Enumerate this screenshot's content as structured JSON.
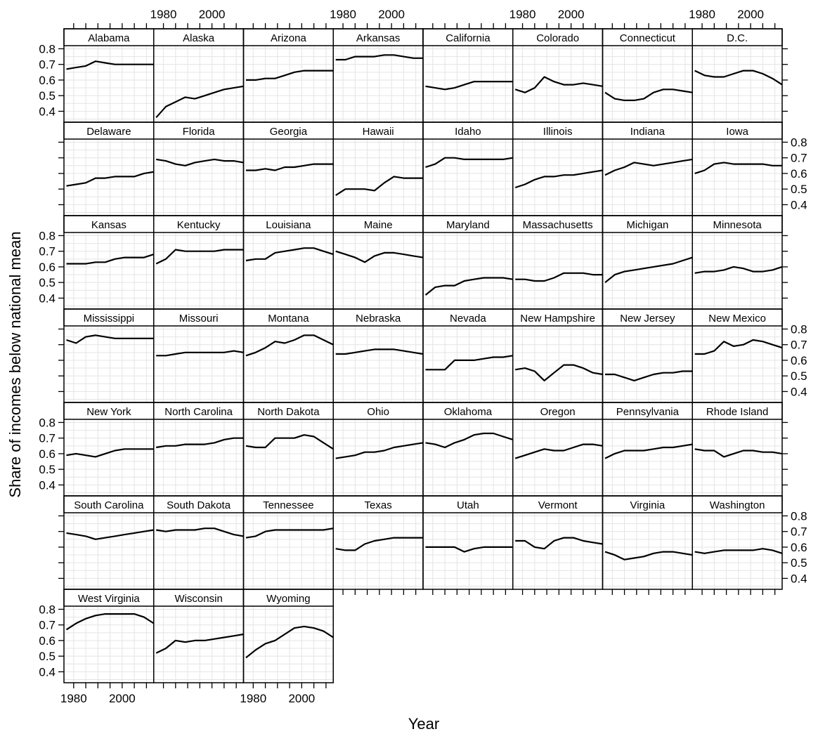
{
  "chart_data": {
    "type": "line",
    "layout": "trellis",
    "xlabel": "Year",
    "ylabel": "Share of incomes below national mean",
    "xlim": [
      1976,
      2013
    ],
    "ylim": [
      0.33,
      0.82
    ],
    "xticks": [
      1980,
      2000
    ],
    "yticks": [
      0.4,
      0.5,
      0.6,
      0.7,
      0.8
    ],
    "grid": true,
    "panels": [
      {
        "name": "Alabama",
        "values": [
          0.67,
          0.68,
          0.69,
          0.72,
          0.71,
          0.7,
          0.7,
          0.7,
          0.7,
          0.7
        ]
      },
      {
        "name": "Alaska",
        "values": [
          0.36,
          0.43,
          0.46,
          0.49,
          0.48,
          0.5,
          0.52,
          0.54,
          0.55,
          0.56
        ]
      },
      {
        "name": "Arizona",
        "values": [
          0.6,
          0.6,
          0.61,
          0.61,
          0.63,
          0.65,
          0.66,
          0.66,
          0.66,
          0.66
        ]
      },
      {
        "name": "Arkansas",
        "values": [
          0.73,
          0.73,
          0.75,
          0.75,
          0.75,
          0.76,
          0.76,
          0.75,
          0.74,
          0.74
        ]
      },
      {
        "name": "California",
        "values": [
          0.56,
          0.55,
          0.54,
          0.55,
          0.57,
          0.59,
          0.59,
          0.59,
          0.59,
          0.59
        ]
      },
      {
        "name": "Colorado",
        "values": [
          0.54,
          0.52,
          0.55,
          0.62,
          0.59,
          0.57,
          0.57,
          0.58,
          0.57,
          0.56
        ]
      },
      {
        "name": "Connecticut",
        "values": [
          0.52,
          0.48,
          0.47,
          0.47,
          0.48,
          0.52,
          0.54,
          0.54,
          0.53,
          0.52
        ]
      },
      {
        "name": "D.C.",
        "values": [
          0.66,
          0.63,
          0.62,
          0.62,
          0.64,
          0.66,
          0.66,
          0.64,
          0.61,
          0.57
        ]
      },
      {
        "name": "Delaware",
        "values": [
          0.52,
          0.53,
          0.54,
          0.57,
          0.57,
          0.58,
          0.58,
          0.58,
          0.6,
          0.61
        ]
      },
      {
        "name": "Florida",
        "values": [
          0.69,
          0.68,
          0.66,
          0.65,
          0.67,
          0.68,
          0.69,
          0.68,
          0.68,
          0.67
        ]
      },
      {
        "name": "Georgia",
        "values": [
          0.62,
          0.62,
          0.63,
          0.62,
          0.64,
          0.64,
          0.65,
          0.66,
          0.66,
          0.66
        ]
      },
      {
        "name": "Hawaii",
        "values": [
          0.46,
          0.5,
          0.5,
          0.5,
          0.49,
          0.54,
          0.58,
          0.57,
          0.57,
          0.57
        ]
      },
      {
        "name": "Idaho",
        "values": [
          0.64,
          0.66,
          0.7,
          0.7,
          0.69,
          0.69,
          0.69,
          0.69,
          0.69,
          0.7
        ]
      },
      {
        "name": "Illinois",
        "values": [
          0.51,
          0.53,
          0.56,
          0.58,
          0.58,
          0.59,
          0.59,
          0.6,
          0.61,
          0.62
        ]
      },
      {
        "name": "Indiana",
        "values": [
          0.59,
          0.62,
          0.64,
          0.67,
          0.66,
          0.65,
          0.66,
          0.67,
          0.68,
          0.69
        ]
      },
      {
        "name": "Iowa",
        "values": [
          0.6,
          0.62,
          0.66,
          0.67,
          0.66,
          0.66,
          0.66,
          0.66,
          0.65,
          0.65
        ]
      },
      {
        "name": "Kansas",
        "values": [
          0.62,
          0.62,
          0.62,
          0.63,
          0.63,
          0.65,
          0.66,
          0.66,
          0.66,
          0.68
        ]
      },
      {
        "name": "Kentucky",
        "values": [
          0.62,
          0.65,
          0.71,
          0.7,
          0.7,
          0.7,
          0.7,
          0.71,
          0.71,
          0.71
        ]
      },
      {
        "name": "Louisiana",
        "values": [
          0.64,
          0.65,
          0.65,
          0.69,
          0.7,
          0.71,
          0.72,
          0.72,
          0.7,
          0.68
        ]
      },
      {
        "name": "Maine",
        "values": [
          0.7,
          0.68,
          0.66,
          0.63,
          0.67,
          0.69,
          0.69,
          0.68,
          0.67,
          0.66
        ]
      },
      {
        "name": "Maryland",
        "values": [
          0.42,
          0.47,
          0.48,
          0.48,
          0.51,
          0.52,
          0.53,
          0.53,
          0.53,
          0.52
        ]
      },
      {
        "name": "Massachusetts",
        "values": [
          0.52,
          0.52,
          0.51,
          0.51,
          0.53,
          0.56,
          0.56,
          0.56,
          0.55,
          0.55
        ]
      },
      {
        "name": "Michigan",
        "values": [
          0.5,
          0.55,
          0.57,
          0.58,
          0.59,
          0.6,
          0.61,
          0.62,
          0.64,
          0.66
        ]
      },
      {
        "name": "Minnesota",
        "values": [
          0.56,
          0.57,
          0.57,
          0.58,
          0.6,
          0.59,
          0.57,
          0.57,
          0.58,
          0.6
        ]
      },
      {
        "name": "Mississippi",
        "values": [
          0.73,
          0.71,
          0.75,
          0.76,
          0.75,
          0.74,
          0.74,
          0.74,
          0.74,
          0.74
        ]
      },
      {
        "name": "Missouri",
        "values": [
          0.63,
          0.63,
          0.64,
          0.65,
          0.65,
          0.65,
          0.65,
          0.65,
          0.66,
          0.65
        ]
      },
      {
        "name": "Montana",
        "values": [
          0.63,
          0.65,
          0.68,
          0.72,
          0.71,
          0.73,
          0.76,
          0.76,
          0.73,
          0.7
        ]
      },
      {
        "name": "Nebraska",
        "values": [
          0.64,
          0.64,
          0.65,
          0.66,
          0.67,
          0.67,
          0.67,
          0.66,
          0.65,
          0.64
        ]
      },
      {
        "name": "Nevada",
        "values": [
          0.54,
          0.54,
          0.54,
          0.6,
          0.6,
          0.6,
          0.61,
          0.62,
          0.62,
          0.63
        ]
      },
      {
        "name": "New Hampshire",
        "values": [
          0.54,
          0.55,
          0.53,
          0.47,
          0.52,
          0.57,
          0.57,
          0.55,
          0.52,
          0.51
        ]
      },
      {
        "name": "New Jersey",
        "values": [
          0.51,
          0.51,
          0.49,
          0.47,
          0.49,
          0.51,
          0.52,
          0.52,
          0.53,
          0.53
        ]
      },
      {
        "name": "New Mexico",
        "values": [
          0.64,
          0.64,
          0.66,
          0.72,
          0.69,
          0.7,
          0.73,
          0.72,
          0.7,
          0.68
        ]
      },
      {
        "name": "New York",
        "values": [
          0.59,
          0.6,
          0.59,
          0.58,
          0.6,
          0.62,
          0.63,
          0.63,
          0.63,
          0.63
        ]
      },
      {
        "name": "North Carolina",
        "values": [
          0.64,
          0.65,
          0.65,
          0.66,
          0.66,
          0.66,
          0.67,
          0.69,
          0.7,
          0.7
        ]
      },
      {
        "name": "North Dakota",
        "values": [
          0.65,
          0.64,
          0.64,
          0.7,
          0.7,
          0.7,
          0.72,
          0.71,
          0.67,
          0.63
        ]
      },
      {
        "name": "Ohio",
        "values": [
          0.57,
          0.58,
          0.59,
          0.61,
          0.61,
          0.62,
          0.64,
          0.65,
          0.66,
          0.67
        ]
      },
      {
        "name": "Oklahoma",
        "values": [
          0.67,
          0.66,
          0.64,
          0.67,
          0.69,
          0.72,
          0.73,
          0.73,
          0.71,
          0.69
        ]
      },
      {
        "name": "Oregon",
        "values": [
          0.57,
          0.59,
          0.61,
          0.63,
          0.62,
          0.62,
          0.64,
          0.66,
          0.66,
          0.65
        ]
      },
      {
        "name": "Pennsylvania",
        "values": [
          0.57,
          0.6,
          0.62,
          0.62,
          0.62,
          0.63,
          0.64,
          0.64,
          0.65,
          0.66
        ]
      },
      {
        "name": "Rhode Island",
        "values": [
          0.63,
          0.62,
          0.62,
          0.58,
          0.6,
          0.62,
          0.62,
          0.61,
          0.61,
          0.6
        ]
      },
      {
        "name": "South Carolina",
        "values": [
          0.69,
          0.68,
          0.67,
          0.65,
          0.66,
          0.67,
          0.68,
          0.69,
          0.7,
          0.71
        ]
      },
      {
        "name": "South Dakota",
        "values": [
          0.71,
          0.7,
          0.71,
          0.71,
          0.71,
          0.72,
          0.72,
          0.7,
          0.68,
          0.67
        ]
      },
      {
        "name": "Tennessee",
        "values": [
          0.66,
          0.67,
          0.7,
          0.71,
          0.71,
          0.71,
          0.71,
          0.71,
          0.71,
          0.72
        ]
      },
      {
        "name": "Texas",
        "values": [
          0.59,
          0.58,
          0.58,
          0.62,
          0.64,
          0.65,
          0.66,
          0.66,
          0.66,
          0.66
        ]
      },
      {
        "name": "Utah",
        "values": [
          0.6,
          0.6,
          0.6,
          0.6,
          0.57,
          0.59,
          0.6,
          0.6,
          0.6,
          0.6
        ]
      },
      {
        "name": "Vermont",
        "values": [
          0.64,
          0.64,
          0.6,
          0.59,
          0.64,
          0.66,
          0.66,
          0.64,
          0.63,
          0.62
        ]
      },
      {
        "name": "Virginia",
        "values": [
          0.57,
          0.55,
          0.52,
          0.53,
          0.54,
          0.56,
          0.57,
          0.57,
          0.56,
          0.55
        ]
      },
      {
        "name": "Washington",
        "values": [
          0.57,
          0.56,
          0.57,
          0.58,
          0.58,
          0.58,
          0.58,
          0.59,
          0.58,
          0.56
        ]
      },
      {
        "name": "West Virginia",
        "values": [
          0.67,
          0.71,
          0.74,
          0.76,
          0.77,
          0.77,
          0.77,
          0.77,
          0.75,
          0.71
        ]
      },
      {
        "name": "Wisconsin",
        "values": [
          0.52,
          0.55,
          0.6,
          0.59,
          0.6,
          0.6,
          0.61,
          0.62,
          0.63,
          0.64
        ]
      },
      {
        "name": "Wyoming",
        "values": [
          0.49,
          0.54,
          0.58,
          0.6,
          0.64,
          0.68,
          0.69,
          0.68,
          0.66,
          0.62
        ]
      }
    ],
    "x": [
      1977,
      1981,
      1985,
      1989,
      1993,
      1997,
      2001,
      2005,
      2009,
      2013
    ]
  }
}
